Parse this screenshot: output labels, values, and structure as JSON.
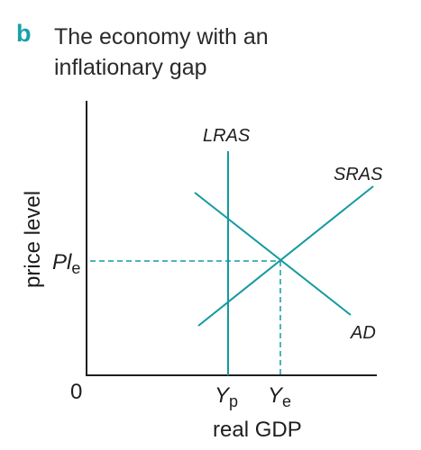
{
  "panel": {
    "letter": "b",
    "title_line1": "The economy with an",
    "title_line2": "inflationary gap"
  },
  "axes": {
    "y_label": "price level",
    "x_label": "real GDP",
    "origin_label": "0"
  },
  "curves": {
    "lras": "LRAS",
    "sras": "SRAS",
    "ad": "AD"
  },
  "ticks": {
    "pl_main": "Pl",
    "pl_sub": "e",
    "yp_main": "Y",
    "yp_sub": "p",
    "ye_main": "Y",
    "ye_sub": "e"
  },
  "colors": {
    "accent": "#17a1a9",
    "curve": "#139a9f",
    "axis": "#1e1e1e"
  }
}
